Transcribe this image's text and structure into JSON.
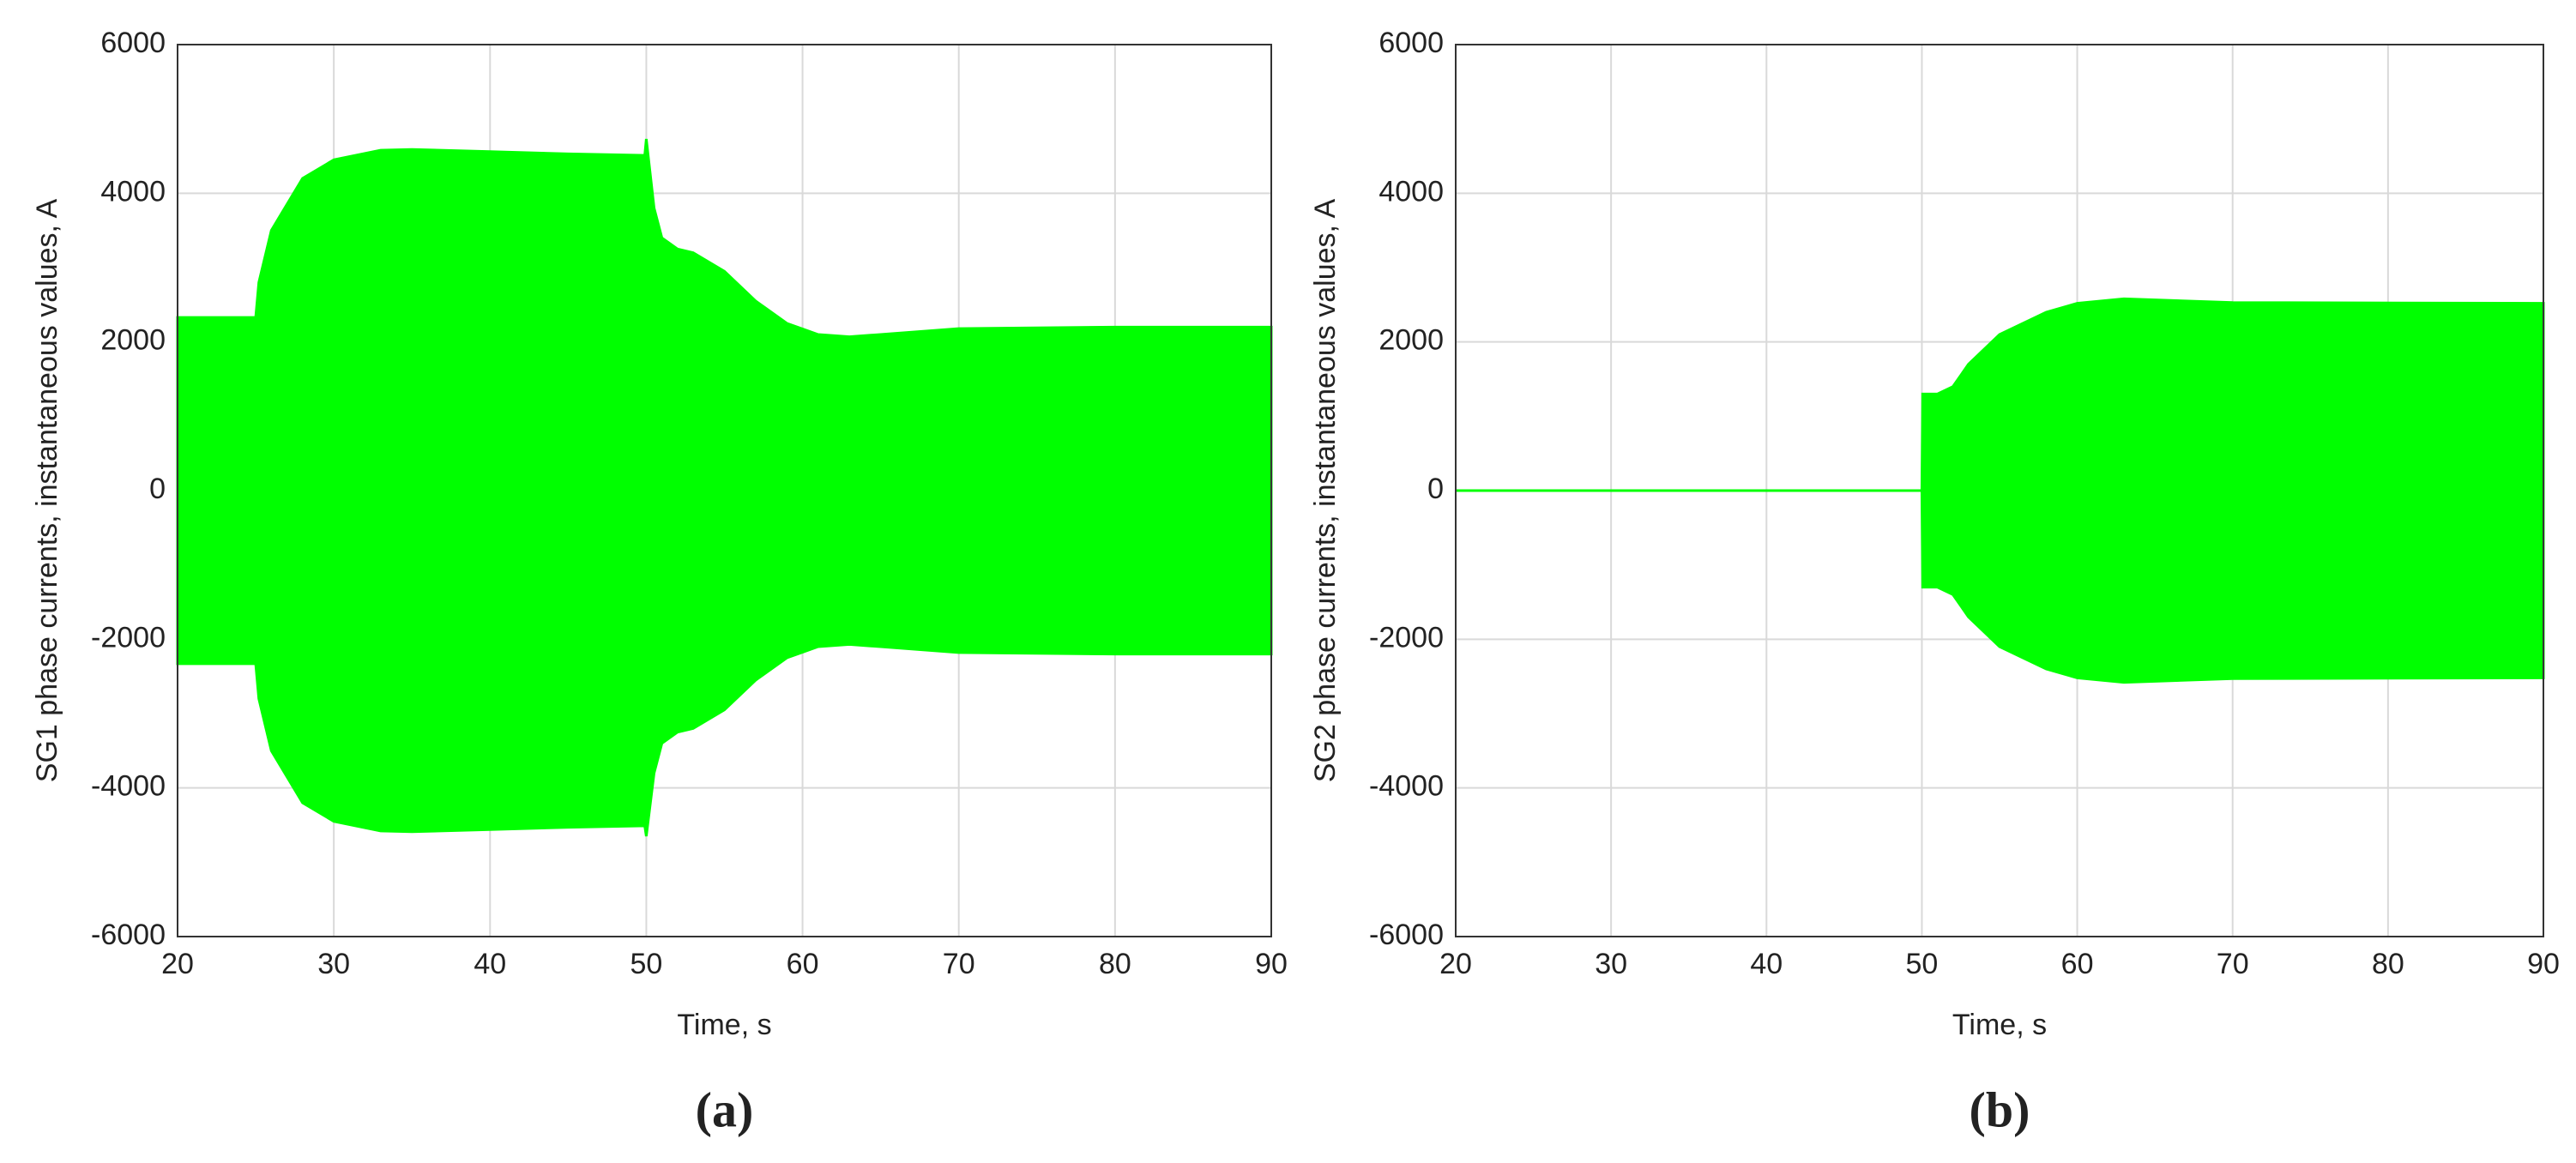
{
  "chart_data": [
    {
      "type": "band",
      "caption": "(a)",
      "xlabel": "Time, s",
      "ylabel": "SG1 phase currents, instantaneous values, A",
      "color": "#00ff00",
      "x": [
        20,
        25,
        25.2,
        26,
        28,
        30,
        33,
        35,
        40,
        45,
        49.9,
        50,
        50.5,
        51,
        52,
        53,
        55,
        57,
        59,
        61,
        63,
        65,
        70,
        80,
        90
      ],
      "upper": [
        2330,
        2330,
        2800,
        3500,
        4200,
        4450,
        4580,
        4590,
        4560,
        4530,
        4510,
        4730,
        3800,
        3400,
        3250,
        3200,
        2950,
        2550,
        2250,
        2100,
        2070,
        2100,
        2180,
        2200,
        2200
      ],
      "lower": [
        -2330,
        -2330,
        -2800,
        -3500,
        -4200,
        -4450,
        -4580,
        -4590,
        -4560,
        -4530,
        -4510,
        -4650,
        -3800,
        -3400,
        -3250,
        -3200,
        -2950,
        -2550,
        -2250,
        -2100,
        -2070,
        -2100,
        -2180,
        -2200,
        -2200
      ],
      "xlim": [
        20,
        90
      ],
      "xticks": [
        20,
        30,
        40,
        50,
        60,
        70,
        80,
        90
      ],
      "ylim": [
        -6000,
        6000
      ],
      "yticks": [
        -6000,
        -4000,
        -2000,
        0,
        2000,
        4000,
        6000
      ],
      "grid": true
    },
    {
      "type": "band",
      "caption": "(b)",
      "xlabel": "Time, s",
      "ylabel": "SG2 phase currents, instantaneous values, A",
      "color": "#00ff00",
      "x": [
        20,
        50,
        50.05,
        51,
        52,
        53,
        55,
        58,
        60,
        63,
        70,
        90
      ],
      "upper": [
        0,
        0,
        1300,
        1300,
        1400,
        1700,
        2100,
        2400,
        2520,
        2580,
        2530,
        2520
      ],
      "lower": [
        0,
        0,
        -1300,
        -1300,
        -1400,
        -1700,
        -2100,
        -2400,
        -2520,
        -2580,
        -2530,
        -2520
      ],
      "xlim": [
        20,
        90
      ],
      "xticks": [
        20,
        30,
        40,
        50,
        60,
        70,
        80,
        90
      ],
      "ylim": [
        -6000,
        6000
      ],
      "yticks": [
        -6000,
        -4000,
        -2000,
        0,
        2000,
        4000,
        6000
      ],
      "grid": true
    }
  ]
}
